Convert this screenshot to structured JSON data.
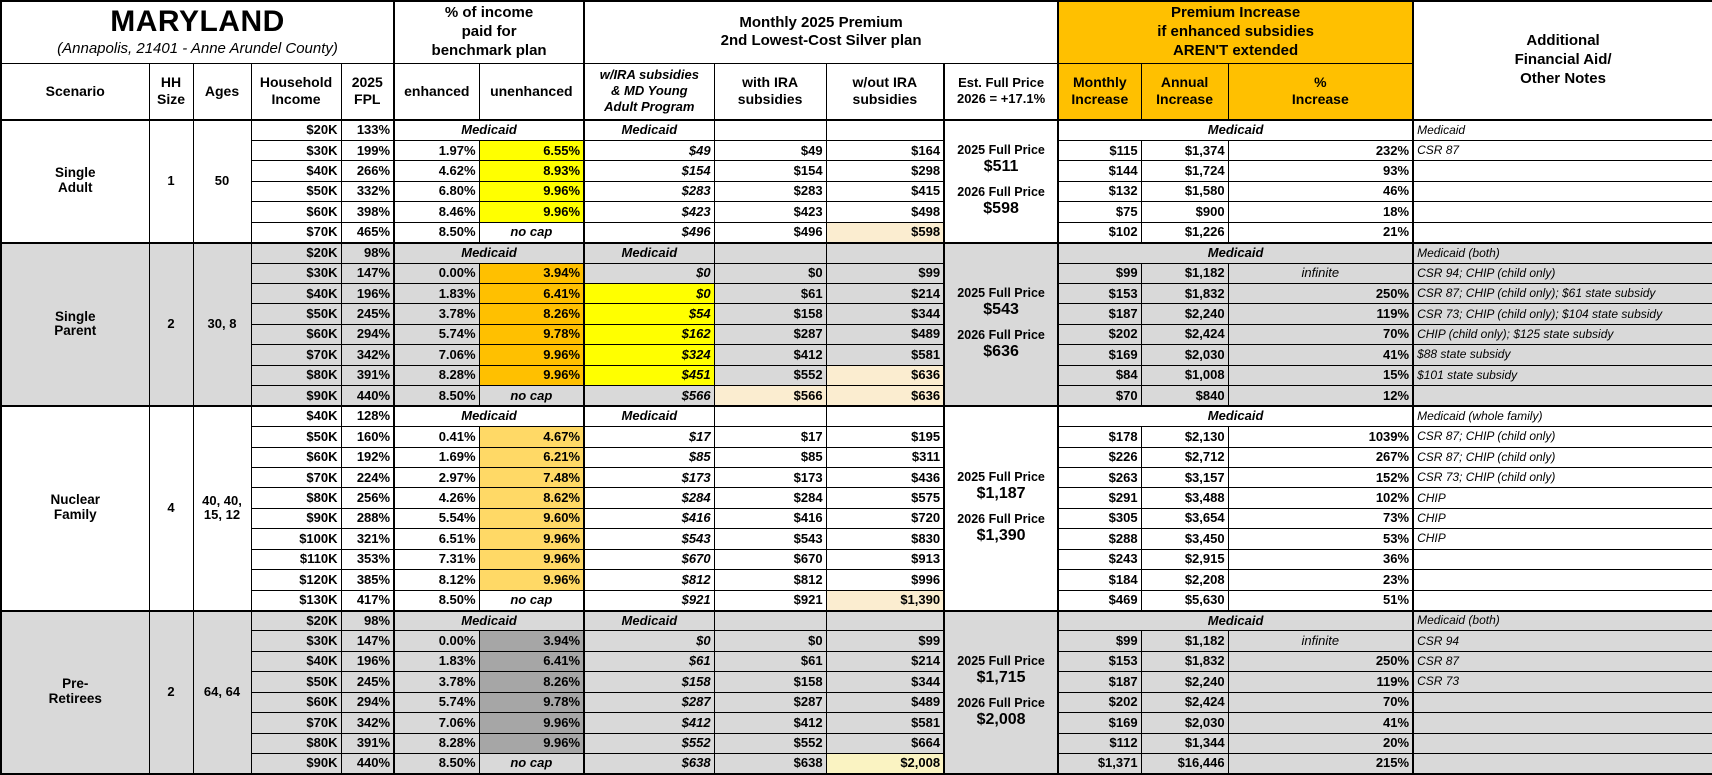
{
  "colors": {
    "group_header_orange": "#FFC000",
    "section_gray": "#D9D9D9",
    "highlight_yellow": "#FFFF00",
    "highlight_orange": "#FFC000",
    "highlight_gold": "#FFD966",
    "highlight_dark_gray": "#A6A6A6",
    "highlight_cream": "#FBEDD0",
    "highlight_pale_yellow": "#FAF3C2"
  },
  "header": {
    "title": "MARYLAND",
    "subtitle": "(Annapolis, 21401 - Anne Arundel County)",
    "groups": {
      "pct_income": "% of income\npaid for\nbenchmark plan",
      "premium": "Monthly 2025 Premium\n2nd Lowest-Cost Silver plan",
      "increase": "Premium Increase\nif enhanced subsidies\nAREN'T extended"
    },
    "columns": {
      "scenario": "Scenario",
      "hh_size": "HH\nSize",
      "ages": "Ages",
      "household_income": "Household\nIncome",
      "fpl": "2025\nFPL",
      "enhanced": "enhanced",
      "unenhanced": "unenhanced",
      "wira": "w/IRA subsidies\n& MD Young\nAdult Program",
      "with_ira": "with IRA\nsubsidies",
      "wout_ira": "w/out IRA\nsubsidies",
      "est_full_price": "Est. Full Price\n2026 = +17.1%",
      "monthly": "Monthly\nIncrease",
      "annual": "Annual\nIncrease",
      "pct_increase": "%\nIncrease",
      "notes": "Additional\nFinancial Aid/\nOther Notes"
    }
  },
  "sections": [
    {
      "name": "Single\nAdult",
      "hh_size": "1",
      "ages": "50",
      "shade": false,
      "full_price": {
        "y2025_label": "2025 Full Price",
        "y2025": "$511",
        "y2026_label": "2026 Full Price",
        "y2026": "$598"
      },
      "rows": [
        {
          "type": "medicaid",
          "income": "$20K",
          "fpl": "133%",
          "pct_medicaid": "Medicaid",
          "wira_medicaid": "Medicaid",
          "increase_medicaid": "Medicaid",
          "note": "Medicaid"
        },
        {
          "income": "$30K",
          "fpl": "199%",
          "enhanced": "1.97%",
          "unenhanced": "6.55%",
          "wira": "$49",
          "with_ira": "$49",
          "wout_ira": "$164",
          "monthly": "$115",
          "annual": "$1,374",
          "pct_increase": "232%",
          "note": "CSR 87",
          "hl": {
            "unenhanced": "yellow"
          }
        },
        {
          "income": "$40K",
          "fpl": "266%",
          "enhanced": "4.62%",
          "unenhanced": "8.93%",
          "wira": "$154",
          "with_ira": "$154",
          "wout_ira": "$298",
          "monthly": "$144",
          "annual": "$1,724",
          "pct_increase": "93%",
          "note": "",
          "hl": {
            "unenhanced": "yellow"
          }
        },
        {
          "income": "$50K",
          "fpl": "332%",
          "enhanced": "6.80%",
          "unenhanced": "9.96%",
          "wira": "$283",
          "with_ira": "$283",
          "wout_ira": "$415",
          "monthly": "$132",
          "annual": "$1,580",
          "pct_increase": "46%",
          "note": "",
          "hl": {
            "unenhanced": "yellow"
          }
        },
        {
          "income": "$60K",
          "fpl": "398%",
          "enhanced": "8.46%",
          "unenhanced": "9.96%",
          "wira": "$423",
          "with_ira": "$423",
          "wout_ira": "$498",
          "monthly": "$75",
          "annual": "$900",
          "pct_increase": "18%",
          "note": "",
          "hl": {
            "unenhanced": "yellow"
          }
        },
        {
          "income": "$70K",
          "fpl": "465%",
          "enhanced": "8.50%",
          "unenhanced": "no cap",
          "nocap": true,
          "wira": "$496",
          "with_ira": "$496",
          "wout_ira": "$598",
          "monthly": "$102",
          "annual": "$1,226",
          "pct_increase": "21%",
          "note": "",
          "hl": {
            "wout_ira": "cream"
          }
        }
      ]
    },
    {
      "name": "Single\nParent",
      "hh_size": "2",
      "ages": "30, 8",
      "shade": true,
      "full_price": {
        "y2025_label": "2025 Full Price",
        "y2025": "$543",
        "y2026_label": "2026 Full Price",
        "y2026": "$636"
      },
      "rows": [
        {
          "type": "medicaid",
          "income": "$20K",
          "fpl": "98%",
          "pct_medicaid": "Medicaid",
          "wira_medicaid": "Medicaid",
          "increase_medicaid": "Medicaid",
          "note": "Medicaid (both)"
        },
        {
          "income": "$30K",
          "fpl": "147%",
          "enhanced": "0.00%",
          "unenhanced": "3.94%",
          "wira": "$0",
          "with_ira": "$0",
          "wout_ira": "$99",
          "monthly": "$99",
          "annual": "$1,182",
          "pct_increase": "infinite",
          "pct_infinite": true,
          "note": "CSR 94; CHIP (child only)",
          "hl": {
            "unenhanced": "orange"
          }
        },
        {
          "income": "$40K",
          "fpl": "196%",
          "enhanced": "1.83%",
          "unenhanced": "6.41%",
          "wira": "$0",
          "with_ira": "$61",
          "wout_ira": "$214",
          "monthly": "$153",
          "annual": "$1,832",
          "pct_increase": "250%",
          "note": "CSR 87; CHIP (child only); $61 state subsidy",
          "hl": {
            "unenhanced": "orange",
            "wira": "yellow"
          }
        },
        {
          "income": "$50K",
          "fpl": "245%",
          "enhanced": "3.78%",
          "unenhanced": "8.26%",
          "wira": "$54",
          "with_ira": "$158",
          "wout_ira": "$344",
          "monthly": "$187",
          "annual": "$2,240",
          "pct_increase": "119%",
          "note": "CSR 73; CHIP (child only); $104 state subsidy",
          "hl": {
            "unenhanced": "orange",
            "wira": "yellow"
          }
        },
        {
          "income": "$60K",
          "fpl": "294%",
          "enhanced": "5.74%",
          "unenhanced": "9.78%",
          "wira": "$162",
          "with_ira": "$287",
          "wout_ira": "$489",
          "monthly": "$202",
          "annual": "$2,424",
          "pct_increase": "70%",
          "note": "CHIP (child only); $125 state subsidy",
          "hl": {
            "unenhanced": "orange",
            "wira": "yellow"
          }
        },
        {
          "income": "$70K",
          "fpl": "342%",
          "enhanced": "7.06%",
          "unenhanced": "9.96%",
          "wira": "$324",
          "with_ira": "$412",
          "wout_ira": "$581",
          "monthly": "$169",
          "annual": "$2,030",
          "pct_increase": "41%",
          "note": "$88 state subsidy",
          "hl": {
            "unenhanced": "orange",
            "wira": "yellow"
          }
        },
        {
          "income": "$80K",
          "fpl": "391%",
          "enhanced": "8.28%",
          "unenhanced": "9.96%",
          "wira": "$451",
          "with_ira": "$552",
          "wout_ira": "$636",
          "monthly": "$84",
          "annual": "$1,008",
          "pct_increase": "15%",
          "note": "$101 state subsidy",
          "hl": {
            "unenhanced": "orange",
            "wira": "yellow",
            "wout_ira": "cream"
          }
        },
        {
          "income": "$90K",
          "fpl": "440%",
          "enhanced": "8.50%",
          "unenhanced": "no cap",
          "nocap": true,
          "wira": "$566",
          "with_ira": "$566",
          "wout_ira": "$636",
          "monthly": "$70",
          "annual": "$840",
          "pct_increase": "12%",
          "note": "",
          "hl": {
            "with_ira": "cream",
            "wout_ira": "cream"
          }
        }
      ]
    },
    {
      "name": "Nuclear\nFamily",
      "hh_size": "4",
      "ages": "40, 40,\n15, 12",
      "shade": false,
      "full_price": {
        "y2025_label": "2025 Full Price",
        "y2025": "$1,187",
        "y2026_label": "2026 Full Price",
        "y2026": "$1,390"
      },
      "rows": [
        {
          "type": "medicaid",
          "income": "$40K",
          "fpl": "128%",
          "pct_medicaid": "Medicaid",
          "wira_medicaid": "Medicaid",
          "increase_medicaid": "Medicaid",
          "note": "Medicaid (whole family)"
        },
        {
          "income": "$50K",
          "fpl": "160%",
          "enhanced": "0.41%",
          "unenhanced": "4.67%",
          "wira": "$17",
          "with_ira": "$17",
          "wout_ira": "$195",
          "monthly": "$178",
          "annual": "$2,130",
          "pct_increase": "1039%",
          "note": "CSR 87; CHIP (child only)",
          "hl": {
            "unenhanced": "gold"
          }
        },
        {
          "income": "$60K",
          "fpl": "192%",
          "enhanced": "1.69%",
          "unenhanced": "6.21%",
          "wira": "$85",
          "with_ira": "$85",
          "wout_ira": "$311",
          "monthly": "$226",
          "annual": "$2,712",
          "pct_increase": "267%",
          "note": "CSR 87; CHIP (child only)",
          "hl": {
            "unenhanced": "gold"
          }
        },
        {
          "income": "$70K",
          "fpl": "224%",
          "enhanced": "2.97%",
          "unenhanced": "7.48%",
          "wira": "$173",
          "with_ira": "$173",
          "wout_ira": "$436",
          "monthly": "$263",
          "annual": "$3,157",
          "pct_increase": "152%",
          "note": "CSR 73; CHIP (child only)",
          "hl": {
            "unenhanced": "gold"
          }
        },
        {
          "income": "$80K",
          "fpl": "256%",
          "enhanced": "4.26%",
          "unenhanced": "8.62%",
          "wira": "$284",
          "with_ira": "$284",
          "wout_ira": "$575",
          "monthly": "$291",
          "annual": "$3,488",
          "pct_increase": "102%",
          "note": "CHIP",
          "hl": {
            "unenhanced": "gold"
          }
        },
        {
          "income": "$90K",
          "fpl": "288%",
          "enhanced": "5.54%",
          "unenhanced": "9.60%",
          "wira": "$416",
          "with_ira": "$416",
          "wout_ira": "$720",
          "monthly": "$305",
          "annual": "$3,654",
          "pct_increase": "73%",
          "note": "CHIP",
          "hl": {
            "unenhanced": "gold"
          }
        },
        {
          "income": "$100K",
          "fpl": "321%",
          "enhanced": "6.51%",
          "unenhanced": "9.96%",
          "wira": "$543",
          "with_ira": "$543",
          "wout_ira": "$830",
          "monthly": "$288",
          "annual": "$3,450",
          "pct_increase": "53%",
          "note": "CHIP",
          "hl": {
            "unenhanced": "gold"
          }
        },
        {
          "income": "$110K",
          "fpl": "353%",
          "enhanced": "7.31%",
          "unenhanced": "9.96%",
          "wira": "$670",
          "with_ira": "$670",
          "wout_ira": "$913",
          "monthly": "$243",
          "annual": "$2,915",
          "pct_increase": "36%",
          "note": "",
          "hl": {
            "unenhanced": "gold"
          }
        },
        {
          "income": "$120K",
          "fpl": "385%",
          "enhanced": "8.12%",
          "unenhanced": "9.96%",
          "wira": "$812",
          "with_ira": "$812",
          "wout_ira": "$996",
          "monthly": "$184",
          "annual": "$2,208",
          "pct_increase": "23%",
          "note": "",
          "hl": {
            "unenhanced": "gold"
          }
        },
        {
          "income": "$130K",
          "fpl": "417%",
          "enhanced": "8.50%",
          "unenhanced": "no cap",
          "nocap": true,
          "wira": "$921",
          "with_ira": "$921",
          "wout_ira": "$1,390",
          "monthly": "$469",
          "annual": "$5,630",
          "pct_increase": "51%",
          "note": "",
          "hl": {
            "wout_ira": "cream"
          }
        }
      ]
    },
    {
      "name": "Pre-\nRetirees",
      "hh_size": "2",
      "ages": "64, 64",
      "shade": true,
      "full_price": {
        "y2025_label": "2025 Full Price",
        "y2025": "$1,715",
        "y2026_label": "2026 Full Price",
        "y2026": "$2,008"
      },
      "rows": [
        {
          "type": "medicaid",
          "income": "$20K",
          "fpl": "98%",
          "pct_medicaid": "Medicaid",
          "wira_medicaid": "Medicaid",
          "increase_medicaid": "Medicaid",
          "note": "Medicaid (both)"
        },
        {
          "income": "$30K",
          "fpl": "147%",
          "enhanced": "0.00%",
          "unenhanced": "3.94%",
          "wira": "$0",
          "with_ira": "$0",
          "wout_ira": "$99",
          "monthly": "$99",
          "annual": "$1,182",
          "pct_increase": "infinite",
          "pct_infinite": true,
          "note": "CSR 94",
          "hl": {
            "unenhanced": "darkgray"
          }
        },
        {
          "income": "$40K",
          "fpl": "196%",
          "enhanced": "1.83%",
          "unenhanced": "6.41%",
          "wira": "$61",
          "with_ira": "$61",
          "wout_ira": "$214",
          "monthly": "$153",
          "annual": "$1,832",
          "pct_increase": "250%",
          "note": "CSR 87",
          "hl": {
            "unenhanced": "darkgray"
          }
        },
        {
          "income": "$50K",
          "fpl": "245%",
          "enhanced": "3.78%",
          "unenhanced": "8.26%",
          "wira": "$158",
          "with_ira": "$158",
          "wout_ira": "$344",
          "monthly": "$187",
          "annual": "$2,240",
          "pct_increase": "119%",
          "note": "CSR 73",
          "hl": {
            "unenhanced": "darkgray"
          }
        },
        {
          "income": "$60K",
          "fpl": "294%",
          "enhanced": "5.74%",
          "unenhanced": "9.78%",
          "wira": "$287",
          "with_ira": "$287",
          "wout_ira": "$489",
          "monthly": "$202",
          "annual": "$2,424",
          "pct_increase": "70%",
          "note": "",
          "hl": {
            "unenhanced": "darkgray"
          }
        },
        {
          "income": "$70K",
          "fpl": "342%",
          "enhanced": "7.06%",
          "unenhanced": "9.96%",
          "wira": "$412",
          "with_ira": "$412",
          "wout_ira": "$581",
          "monthly": "$169",
          "annual": "$2,030",
          "pct_increase": "41%",
          "note": "",
          "hl": {
            "unenhanced": "darkgray"
          }
        },
        {
          "income": "$80K",
          "fpl": "391%",
          "enhanced": "8.28%",
          "unenhanced": "9.96%",
          "wira": "$552",
          "with_ira": "$552",
          "wout_ira": "$664",
          "monthly": "$112",
          "annual": "$1,344",
          "pct_increase": "20%",
          "note": "",
          "hl": {
            "unenhanced": "darkgray"
          }
        },
        {
          "income": "$90K",
          "fpl": "440%",
          "enhanced": "8.50%",
          "unenhanced": "no cap",
          "nocap": true,
          "wira": "$638",
          "with_ira": "$638",
          "wout_ira": "$2,008",
          "monthly": "$1,371",
          "annual": "$16,446",
          "pct_increase": "215%",
          "note": "",
          "hl": {
            "wout_ira": "pale"
          }
        }
      ]
    }
  ]
}
